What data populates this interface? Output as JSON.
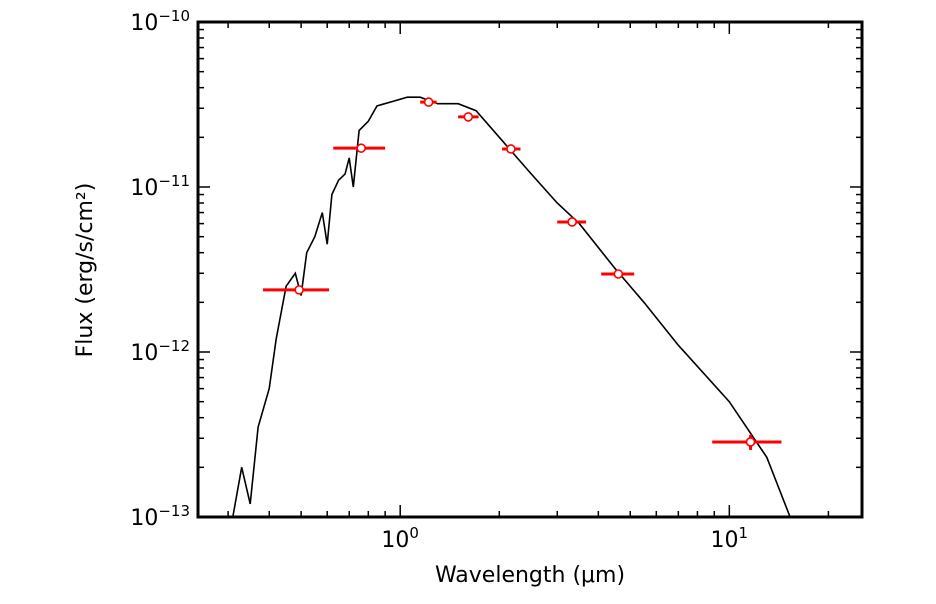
{
  "chart_data": {
    "type": "scatter",
    "x_label": "Wavelength (μm)",
    "y_label": "Flux (erg/s/cm²)",
    "xscale": "log",
    "yscale": "log",
    "xlim": [
      0.243,
      25.3
    ],
    "ylim": [
      1e-13,
      1e-10
    ],
    "xticks": [
      {
        "value": 1,
        "label": "10^0"
      },
      {
        "value": 10,
        "label": "10^1"
      }
    ],
    "yticks": [
      {
        "value": 1e-13,
        "label": "10^−13"
      },
      {
        "value": 1e-12,
        "label": "10^−12"
      },
      {
        "value": 1e-11,
        "label": "10^−11"
      },
      {
        "value": 1e-10,
        "label": "10^−10"
      }
    ],
    "xminorticks": [
      0.3,
      0.4,
      0.5,
      0.6,
      0.7,
      0.8,
      0.9,
      2,
      3,
      4,
      5,
      6,
      7,
      8,
      9,
      20
    ],
    "yminorticks": [
      2e-13,
      3e-13,
      4e-13,
      5e-13,
      6e-13,
      7e-13,
      8e-13,
      9e-13,
      2e-12,
      3e-12,
      4e-12,
      5e-12,
      6e-12,
      7e-12,
      8e-12,
      9e-12,
      2e-11,
      3e-11,
      4e-11,
      5e-11,
      6e-11,
      7e-11,
      8e-11,
      9e-11
    ],
    "model": {
      "color": "#000000",
      "x": [
        0.31,
        0.33,
        0.35,
        0.37,
        0.4,
        0.42,
        0.45,
        0.48,
        0.5,
        0.52,
        0.55,
        0.58,
        0.6,
        0.62,
        0.65,
        0.68,
        0.7,
        0.72,
        0.75,
        0.8,
        0.85,
        0.95,
        1.05,
        1.15,
        1.3,
        1.5,
        1.7,
        2.0,
        2.5,
        3.0,
        3.5,
        4.5,
        5.5,
        7,
        10,
        13,
        15.3
      ],
      "values": [
        1e-13,
        2e-13,
        1.2e-13,
        3.5e-13,
        6e-13,
        1.2e-12,
        2.5e-12,
        3e-12,
        2.2e-12,
        4e-12,
        5e-12,
        7e-12,
        4.5e-12,
        9e-12,
        1.1e-11,
        1.2e-11,
        1.5e-11,
        1e-11,
        2.2e-11,
        2.5e-11,
        3.1e-11,
        3.3e-11,
        3.5e-11,
        3.5e-11,
        3.2e-11,
        3.2e-11,
        2.9e-11,
        2e-11,
        1.2e-11,
        8e-12,
        6e-12,
        3.2e-12,
        2e-12,
        1.1e-12,
        5e-13,
        2.3e-13,
        1e-13
      ]
    },
    "photometry": {
      "color": "#ff0000",
      "x": [
        0.493,
        0.761,
        1.22,
        1.61,
        2.17,
        3.33,
        4.6,
        11.6
      ],
      "x_lower": [
        0.383,
        0.626,
        1.15,
        1.5,
        2.04,
        3.0,
        4.08,
        8.87
      ],
      "x_upper": [
        0.608,
        0.9,
        1.29,
        1.73,
        2.32,
        3.67,
        5.14,
        14.4
      ],
      "values": [
        2.38e-12,
        1.72e-11,
        3.27e-11,
        2.66e-11,
        1.7e-11,
        6.14e-12,
        2.97e-12,
        2.85e-13
      ],
      "yerr": [
        null,
        null,
        null,
        null,
        null,
        null,
        null,
        3e-14
      ]
    }
  }
}
